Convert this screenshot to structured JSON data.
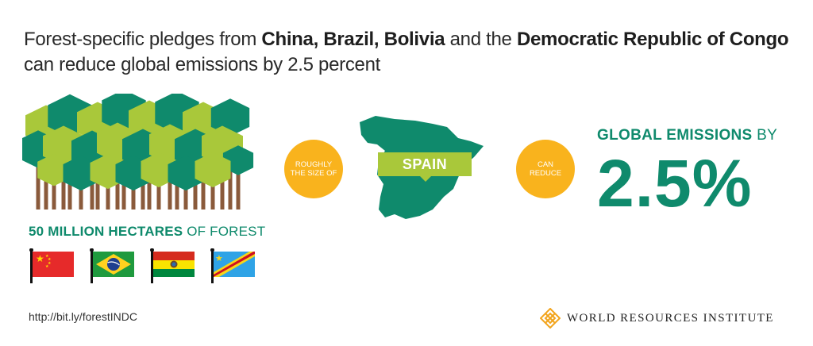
{
  "headline": {
    "seg1": "Forest-specific pledges from ",
    "china": "China,",
    "brazil": "Brazil,",
    "bolivia": "Bolivia",
    "seg2": " and the ",
    "drc": "Democratic Republic of Congo",
    "line2": "can reduce global emissions by 2.5 percent"
  },
  "forest": {
    "caption_bold": "50 MILLION HECTARES",
    "caption_rest": " OF FOREST",
    "flags": [
      {
        "icon": "china-flag-icon"
      },
      {
        "icon": "brazil-flag-icon"
      },
      {
        "icon": "bolivia-flag-icon"
      },
      {
        "icon": "drc-flag-icon"
      }
    ]
  },
  "circle1": {
    "line1": "ROUGHLY",
    "line2": "THE SIZE OF"
  },
  "spain": {
    "label": "SPAIN"
  },
  "circle2": {
    "line1": "CAN",
    "line2": "REDUCE"
  },
  "emissions": {
    "label_bold": "GLOBAL EMISSIONS",
    "label_rest": " BY",
    "value": "2.5%"
  },
  "footer": {
    "url": "http://bit.ly/forestINDC",
    "org": "WORLD RESOURCES INSTITUTE"
  },
  "colors": {
    "green_dark": "#0f8a6c",
    "green_light": "#a9c83a",
    "yellow": "#f9b31d",
    "trunk": "#8a5a3b"
  }
}
